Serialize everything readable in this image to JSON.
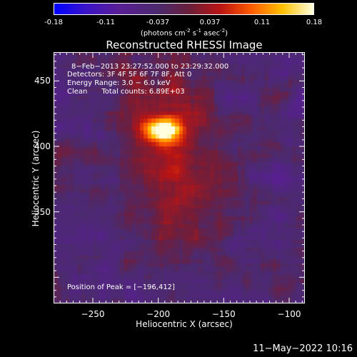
{
  "colorbar": {
    "ticks": [
      "-0.18",
      "-0.11",
      "-0.037",
      "0.037",
      "0.11",
      "0.18"
    ],
    "units_prefix": "(photons cm",
    "units_exp1": "-2",
    "units_mid": " s",
    "units_exp2": "-1",
    "units_mid2": " asec",
    "units_exp3": "-2",
    "units_suffix": ")"
  },
  "chart_data": {
    "type": "heatmap",
    "title": "Reconstructed RHESSI Image",
    "xlabel": "Heliocentric X (arcsec)",
    "ylabel": "Heliocentric Y (arcsec)",
    "xlim": [
      -280,
      -88
    ],
    "ylim": [
      280,
      472
    ],
    "xticks": [
      -250,
      -200,
      -150,
      -100
    ],
    "yticks": [
      350,
      400,
      450
    ],
    "xtick_labels": [
      "−250",
      "−200",
      "−150",
      "−100"
    ],
    "ytick_labels": [
      "350",
      "400",
      "450"
    ],
    "peak": [
      -196,
      412
    ],
    "colorbar_range": [
      -0.18,
      0.18
    ],
    "colors": [
      "#0000ff",
      "#5a1e96",
      "#4b2a6e",
      "#b81414",
      "#ff5a00",
      "#ffc000",
      "#ffffe0"
    ]
  },
  "annotations": {
    "time": "8−Feb−2013 23:27:52.000 to 23:29:32.000",
    "detectors": "Detectors: 3F 4F 5F 6F 7F 8F, Att 0",
    "energy": "Energy Range: 3.0 − 6.0 keV",
    "clean_label": "Clean",
    "counts": "Total counts: 6.89E+03",
    "peak_text": "Position of Peak = [−196,412]"
  },
  "footer": "11−May−2022 10:16"
}
